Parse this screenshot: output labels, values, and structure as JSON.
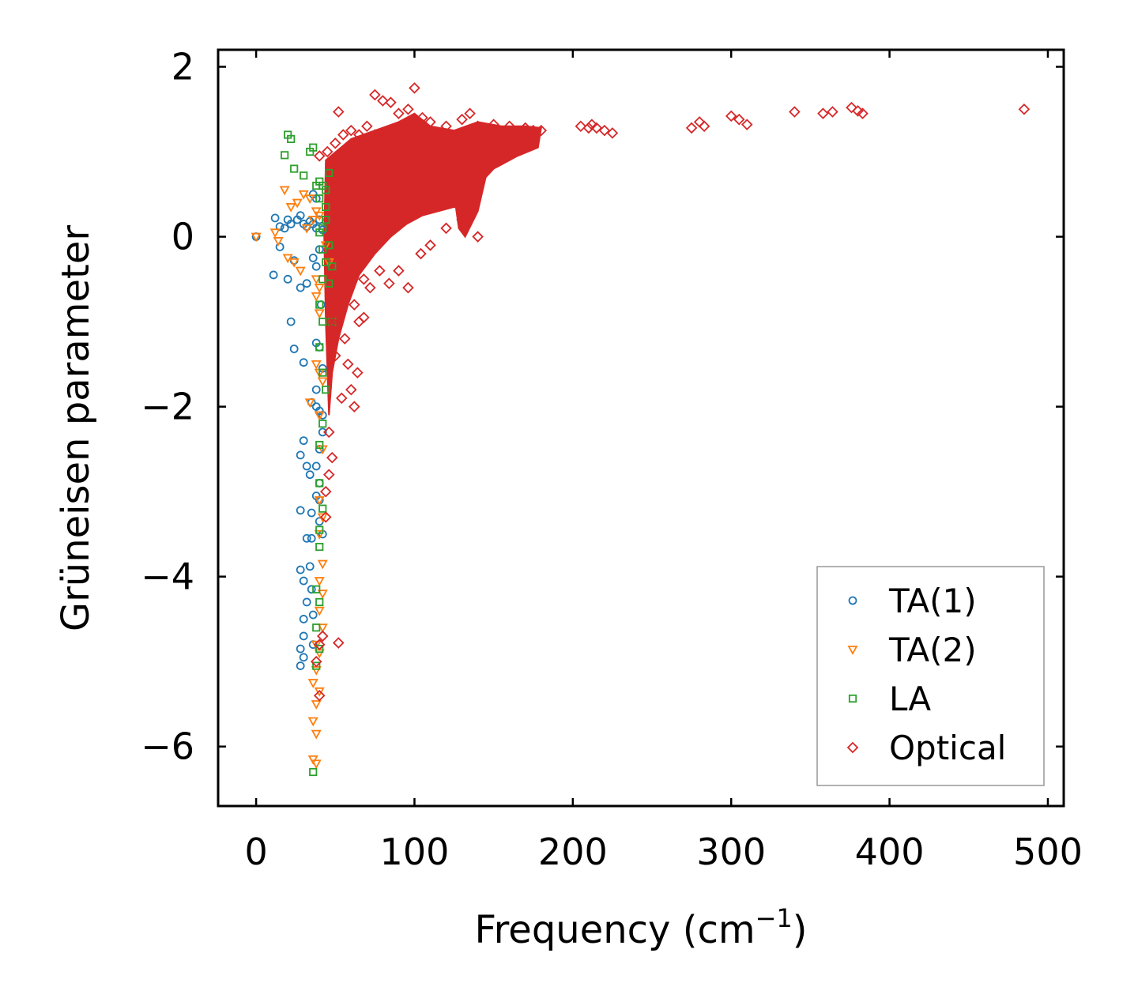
{
  "chart_data": {
    "type": "scatter",
    "title": "",
    "xlabel": "Frequency (cm",
    "xlabel_sup": "−1",
    "xlabel_close": ")",
    "ylabel": "Grüneisen parameter",
    "xlim": [
      -24,
      510
    ],
    "ylim": [
      -6.7,
      2.2
    ],
    "xticks": [
      0,
      100,
      200,
      300,
      400,
      500
    ],
    "xtick_labels": [
      "0",
      "100",
      "200",
      "300",
      "400",
      "500"
    ],
    "yticks": [
      -6,
      -4,
      -2,
      0,
      2
    ],
    "ytick_labels": [
      "−6",
      "−4",
      "−2",
      "0",
      "2"
    ],
    "grid": false,
    "legend_position": "bottom-right",
    "series": [
      {
        "name": "TA(1)",
        "marker": "circle",
        "color": "#1f77b4",
        "points": [
          [
            0,
            0
          ],
          [
            12,
            0.22
          ],
          [
            15,
            0.12
          ],
          [
            18,
            0.1
          ],
          [
            20,
            0.2
          ],
          [
            22,
            0.15
          ],
          [
            26,
            0.2
          ],
          [
            28,
            0.25
          ],
          [
            30,
            0.15
          ],
          [
            32,
            0.12
          ],
          [
            34,
            0.18
          ],
          [
            36,
            0.15
          ],
          [
            38,
            0.1
          ],
          [
            40,
            0.2
          ],
          [
            42,
            0.08
          ],
          [
            11,
            -0.45
          ],
          [
            15,
            -0.12
          ],
          [
            20,
            -0.5
          ],
          [
            24,
            -0.28
          ],
          [
            28,
            -0.6
          ],
          [
            32,
            -0.55
          ],
          [
            36,
            -0.25
          ],
          [
            38,
            -0.35
          ],
          [
            40,
            -0.15
          ],
          [
            22,
            -1.0
          ],
          [
            24,
            -1.32
          ],
          [
            30,
            -1.48
          ],
          [
            38,
            -1.25
          ],
          [
            40,
            -1.3
          ],
          [
            38,
            -1.8
          ],
          [
            35,
            -1.95
          ],
          [
            38,
            -2.0
          ],
          [
            40,
            -2.05
          ],
          [
            42,
            -2.1
          ],
          [
            42,
            -2.3
          ],
          [
            30,
            -2.4
          ],
          [
            28,
            -2.57
          ],
          [
            32,
            -2.7
          ],
          [
            34,
            -2.8
          ],
          [
            38,
            -2.7
          ],
          [
            40,
            -2.9
          ],
          [
            38,
            -3.05
          ],
          [
            40,
            -3.1
          ],
          [
            28,
            -3.22
          ],
          [
            35,
            -3.25
          ],
          [
            32,
            -3.55
          ],
          [
            35,
            -3.55
          ],
          [
            40,
            -3.35
          ],
          [
            42,
            -3.5
          ],
          [
            28,
            -3.92
          ],
          [
            34,
            -3.88
          ],
          [
            30,
            -4.05
          ],
          [
            32,
            -4.3
          ],
          [
            35,
            -4.15
          ],
          [
            30,
            -4.5
          ],
          [
            36,
            -4.45
          ],
          [
            30,
            -4.7
          ],
          [
            28,
            -4.85
          ],
          [
            30,
            -4.95
          ],
          [
            28,
            -5.05
          ],
          [
            36,
            -4.8
          ],
          [
            40,
            -2.5
          ],
          [
            41,
            -0.8
          ],
          [
            42,
            -1.55
          ],
          [
            36,
            0.5
          ],
          [
            38,
            0.45
          ]
        ]
      },
      {
        "name": "TA(2)",
        "marker": "triangle-down",
        "color": "#ff7f0e",
        "points": [
          [
            0,
            0
          ],
          [
            12,
            0.05
          ],
          [
            14,
            -0.05
          ],
          [
            18,
            0.55
          ],
          [
            22,
            0.35
          ],
          [
            26,
            0.4
          ],
          [
            30,
            0.5
          ],
          [
            34,
            0.45
          ],
          [
            38,
            0.3
          ],
          [
            40,
            0.25
          ],
          [
            20,
            -0.25
          ],
          [
            24,
            -0.3
          ],
          [
            28,
            -0.4
          ],
          [
            32,
            0.1
          ],
          [
            36,
            0.2
          ],
          [
            38,
            -0.5
          ],
          [
            40,
            -0.6
          ],
          [
            38,
            -0.7
          ],
          [
            40,
            -0.9
          ],
          [
            38,
            -1.5
          ],
          [
            40,
            -1.6
          ],
          [
            42,
            -1.7
          ],
          [
            34,
            -1.95
          ],
          [
            40,
            -2.1
          ],
          [
            42,
            -2.5
          ],
          [
            40,
            -3.1
          ],
          [
            42,
            -3.3
          ],
          [
            40,
            -3.5
          ],
          [
            42,
            -3.85
          ],
          [
            40,
            -4.05
          ],
          [
            42,
            -4.2
          ],
          [
            40,
            -4.4
          ],
          [
            42,
            -4.6
          ],
          [
            38,
            -4.8
          ],
          [
            40,
            -4.9
          ],
          [
            38,
            -5.1
          ],
          [
            36,
            -5.25
          ],
          [
            40,
            -5.35
          ],
          [
            38,
            -5.5
          ],
          [
            36,
            -5.7
          ],
          [
            38,
            -5.85
          ],
          [
            36,
            -6.15
          ],
          [
            38,
            -6.2
          ],
          [
            44,
            -0.1
          ],
          [
            46,
            -0.3
          ]
        ]
      },
      {
        "name": "LA",
        "marker": "square",
        "color": "#2ca02c",
        "points": [
          [
            20,
            1.2
          ],
          [
            22,
            1.15
          ],
          [
            18,
            0.96
          ],
          [
            24,
            0.8
          ],
          [
            34,
            1.0
          ],
          [
            36,
            1.05
          ],
          [
            30,
            0.72
          ],
          [
            38,
            0.6
          ],
          [
            40,
            0.65
          ],
          [
            42,
            0.6
          ],
          [
            44,
            0.55
          ],
          [
            46,
            0.75
          ],
          [
            40,
            0.45
          ],
          [
            44,
            0.35
          ],
          [
            42,
            0.1
          ],
          [
            44,
            0.2
          ],
          [
            46,
            -0.1
          ],
          [
            44,
            -0.3
          ],
          [
            48,
            -0.35
          ],
          [
            42,
            -0.5
          ],
          [
            46,
            -0.55
          ],
          [
            40,
            -0.8
          ],
          [
            42,
            -1.0
          ],
          [
            48,
            -1.0
          ],
          [
            40,
            -1.3
          ],
          [
            42,
            -1.6
          ],
          [
            44,
            -1.8
          ],
          [
            42,
            -2.2
          ],
          [
            40,
            -2.45
          ],
          [
            40,
            -2.9
          ],
          [
            42,
            -3.2
          ],
          [
            40,
            -3.45
          ],
          [
            40,
            -3.65
          ],
          [
            38,
            -4.15
          ],
          [
            40,
            -4.3
          ],
          [
            38,
            -4.6
          ],
          [
            40,
            -4.85
          ],
          [
            38,
            -5.05
          ],
          [
            36,
            -6.3
          ],
          [
            42,
            -0.15
          ],
          [
            40,
            0.05
          ]
        ]
      },
      {
        "name": "Optical",
        "marker": "diamond",
        "color": "#d62728",
        "points": [
          [
            75,
            1.67
          ],
          [
            100,
            1.75
          ],
          [
            80,
            1.6
          ],
          [
            85,
            1.58
          ],
          [
            52,
            1.47
          ],
          [
            90,
            1.45
          ],
          [
            96,
            1.5
          ],
          [
            105,
            1.4
          ],
          [
            110,
            1.35
          ],
          [
            120,
            1.3
          ],
          [
            130,
            1.38
          ],
          [
            135,
            1.45
          ],
          [
            140,
            1.3
          ],
          [
            150,
            1.32
          ],
          [
            160,
            1.3
          ],
          [
            170,
            1.28
          ],
          [
            175,
            1.25
          ],
          [
            180,
            1.25
          ],
          [
            45,
            1.0
          ],
          [
            50,
            1.1
          ],
          [
            55,
            1.2
          ],
          [
            60,
            1.25
          ],
          [
            65,
            1.2
          ],
          [
            70,
            1.3
          ],
          [
            75,
            1.2
          ],
          [
            40,
            0.95
          ],
          [
            56,
            0.3
          ],
          [
            60,
            0.5
          ],
          [
            64,
            -0.2
          ],
          [
            68,
            -0.5
          ],
          [
            72,
            -0.6
          ],
          [
            78,
            -0.4
          ],
          [
            84,
            -0.55
          ],
          [
            90,
            -0.4
          ],
          [
            96,
            -0.6
          ],
          [
            104,
            -0.2
          ],
          [
            110,
            -0.1
          ],
          [
            120,
            0.1
          ],
          [
            130,
            0.2
          ],
          [
            140,
            0.0
          ],
          [
            65,
            -1.0
          ],
          [
            62,
            -0.8
          ],
          [
            58,
            -1.5
          ],
          [
            60,
            -1.8
          ],
          [
            62,
            -2.0
          ],
          [
            64,
            -1.6
          ],
          [
            68,
            -0.95
          ],
          [
            56,
            -1.2
          ],
          [
            54,
            -1.9
          ],
          [
            50,
            -1.4
          ],
          [
            48,
            -1.0
          ],
          [
            46,
            -2.3
          ],
          [
            48,
            -2.6
          ],
          [
            46,
            -2.8
          ],
          [
            44,
            -3.0
          ],
          [
            44,
            -3.3
          ],
          [
            42,
            -4.7
          ],
          [
            52,
            -4.78
          ],
          [
            40,
            -4.8
          ],
          [
            38,
            -5.0
          ],
          [
            40,
            -5.4
          ],
          [
            210,
            1.28
          ],
          [
            205,
            1.3
          ],
          [
            215,
            1.28
          ],
          [
            220,
            1.25
          ],
          [
            225,
            1.22
          ],
          [
            212,
            1.32
          ],
          [
            275,
            1.28
          ],
          [
            280,
            1.35
          ],
          [
            283,
            1.3
          ],
          [
            300,
            1.42
          ],
          [
            305,
            1.38
          ],
          [
            310,
            1.32
          ],
          [
            340,
            1.47
          ],
          [
            358,
            1.45
          ],
          [
            364,
            1.47
          ],
          [
            376,
            1.52
          ],
          [
            380,
            1.48
          ],
          [
            383,
            1.45
          ],
          [
            485,
            1.5
          ]
        ]
      }
    ]
  }
}
